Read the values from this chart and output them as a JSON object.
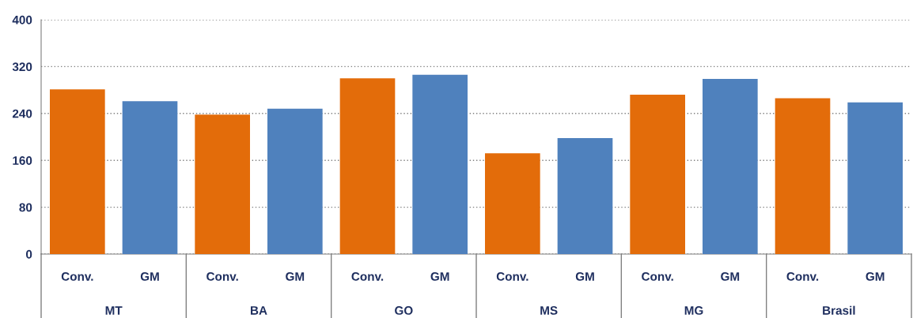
{
  "chart_data": {
    "type": "bar",
    "categories": [
      "MT",
      "BA",
      "GO",
      "MS",
      "MG",
      "Brasil"
    ],
    "series": [
      {
        "name": "Conv.",
        "color": "#e36c0a",
        "values": [
          281,
          238,
          300,
          172,
          272,
          266
        ]
      },
      {
        "name": "GM",
        "color": "#4f81bd",
        "values": [
          261,
          248,
          306,
          198,
          299,
          259
        ]
      }
    ],
    "ylim": [
      0,
      400
    ],
    "yticks": [
      0,
      80,
      160,
      240,
      320,
      400
    ],
    "grid": "y",
    "legend": false
  }
}
